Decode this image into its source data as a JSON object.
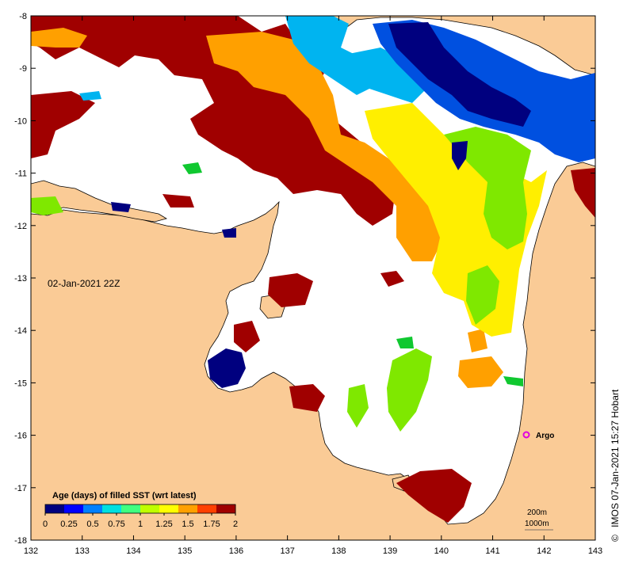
{
  "map": {
    "date_label": "02-Jan-2021 22Z",
    "credit": "IMOS 07-Jan-2021 15:27 Hobart",
    "copyright_symbol": "©",
    "marker": {
      "label": "Argo",
      "lon": 141.7,
      "lat": -16.0,
      "color": "#e000e0"
    },
    "scale_labels": [
      "200m",
      "1000m"
    ],
    "x_ticks": [
      "132",
      "133",
      "134",
      "135",
      "136",
      "137",
      "138",
      "139",
      "140",
      "141",
      "142",
      "143"
    ],
    "y_ticks": [
      "-8",
      "-9",
      "-10",
      "-11",
      "-12",
      "-13",
      "-14",
      "-15",
      "-16",
      "-17",
      "-18"
    ],
    "lon_range": [
      132,
      143
    ],
    "lat_range": [
      -18,
      -8
    ],
    "colors": {
      "land": "#facb96",
      "no_data": "#ffffff",
      "frame": "#000000"
    }
  },
  "legend": {
    "title": "Age (days) of filled SST (wrt latest)",
    "tick_labels": [
      "0",
      "0.25",
      "0.5",
      "0.75",
      "1",
      "1.25",
      "1.5",
      "1.75",
      "2"
    ],
    "range": [
      0,
      2
    ],
    "colormap": [
      "#00007f",
      "#0000ff",
      "#0080ff",
      "#00e0e0",
      "#40ff80",
      "#c0ff00",
      "#ffff00",
      "#ffa000",
      "#ff4000",
      "#a00000"
    ]
  }
}
